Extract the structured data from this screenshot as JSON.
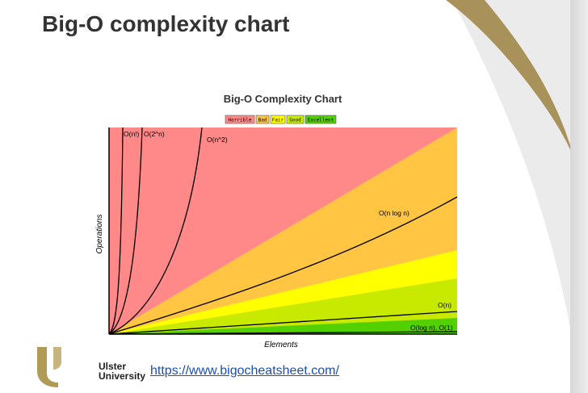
{
  "slide": {
    "title": "Big-O complexity chart",
    "link_text": "https://www.bigocheatsheet.com/",
    "logo_line1": "Ulster",
    "logo_line2": "University"
  },
  "colors": {
    "horrible": "#ff8989",
    "bad": "#ffc543",
    "fair": "#ffff00",
    "good": "#c8ea00",
    "excellent": "#53d000",
    "curve": "#000000",
    "accent_gold": "#b09a55"
  },
  "chart_data": {
    "type": "line",
    "title": "Big-O Complexity Chart",
    "xlabel": "Elements",
    "ylabel": "Operations",
    "legend": [
      "Horrible",
      "Bad",
      "Fair",
      "Good",
      "Excellent"
    ],
    "legend_placement": "top-center",
    "grid": false,
    "series": [
      {
        "name": "O(n!)"
      },
      {
        "name": "O(2^n)"
      },
      {
        "name": "O(n^2)"
      },
      {
        "name": "O(n log n)"
      },
      {
        "name": "O(n)"
      },
      {
        "name": "O(log n), O(1)"
      }
    ]
  }
}
